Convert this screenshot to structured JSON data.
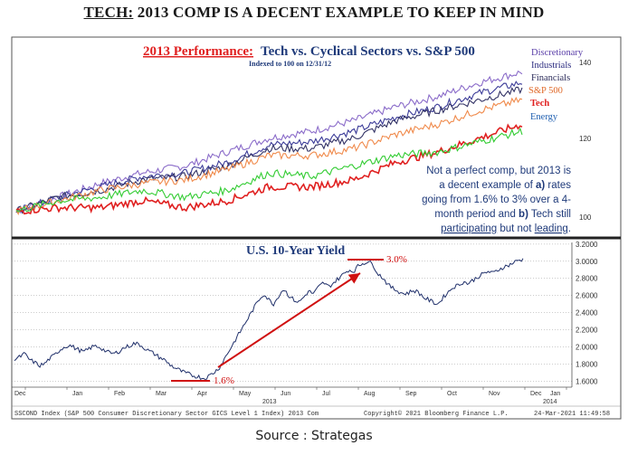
{
  "headline": {
    "prefix": "TECH:",
    "rest": " 2013 COMP IS A DECENT EXAMPLE TO KEEP IN MIND"
  },
  "source": "Source : Strategas",
  "chart_data": [
    {
      "type": "line",
      "title_prefix": "2013 Performance:",
      "title": "Tech vs. Cyclical Sectors vs. S&P 500",
      "subtitle": "Indexed to 100 on 12/31/12",
      "y_ticks": [
        "140",
        "120",
        "100"
      ],
      "ylim": [
        97,
        143
      ],
      "x": [
        0,
        1,
        2,
        3,
        4,
        5,
        6,
        7,
        8,
        9,
        10,
        11,
        12
      ],
      "series": [
        {
          "name": "Discretionary",
          "color": "#8a6bc9",
          "values": [
            100,
            104,
            108,
            111,
            113,
            117,
            121,
            123,
            126,
            130,
            133,
            137,
            140
          ]
        },
        {
          "name": "Industrials",
          "color": "#3b3b98",
          "values": [
            100,
            104,
            107,
            110,
            111,
            114,
            119,
            120,
            123,
            127,
            130,
            134,
            137
          ]
        },
        {
          "name": "Financials",
          "color": "#333366",
          "values": [
            100,
            104,
            106,
            109,
            110,
            113,
            118,
            118,
            121,
            126,
            129,
            132,
            135
          ]
        },
        {
          "name": "S&P 500",
          "color": "#f08a4b",
          "values": [
            100,
            103,
            106,
            108,
            109,
            112,
            116,
            116,
            118,
            122,
            125,
            129,
            132
          ]
        },
        {
          "name": "Tech",
          "color": "#e02020",
          "values": [
            100,
            101,
            101,
            103,
            101,
            103,
            107,
            107,
            109,
            114,
            117,
            121,
            125
          ]
        },
        {
          "name": "Energy",
          "color": "#33cc33",
          "values": [
            100,
            103,
            104,
            106,
            104,
            106,
            111,
            110,
            113,
            116,
            117,
            120,
            123
          ]
        }
      ],
      "annotation": {
        "line1": "Not a perfect comp, but 2013 is",
        "line2_pre": "a decent example of ",
        "line2_b": "a)",
        "line2_post": " rates",
        "line3": "going from 1.6% to 3% over a 4-",
        "line4_pre": "month period and ",
        "line4_b": "b)",
        "line4_post": " Tech still",
        "line5_u1": "participating",
        "line5_mid": " but not ",
        "line5_u2": "leading",
        "line5_end": "."
      }
    },
    {
      "type": "line",
      "title": "U.S. 10-Year Yield",
      "y_ticks": [
        "3.2000",
        "3.0000",
        "2.8000",
        "2.6000",
        "2.4000",
        "2.2000",
        "2.0000",
        "1.8000",
        "1.6000"
      ],
      "ylim": [
        1.55,
        3.22
      ],
      "yield_values": [
        1.85,
        1.88,
        1.92,
        1.85,
        1.82,
        1.78,
        1.8,
        1.86,
        1.9,
        1.96,
        2.0,
        2.02,
        1.99,
        1.96,
        1.94,
        1.98,
        2.01,
        2.0,
        1.96,
        1.93,
        1.92,
        1.95,
        1.99,
        2.01,
        2.04,
        2.03,
        1.99,
        1.95,
        1.92,
        1.88,
        1.85,
        1.8,
        1.76,
        1.73,
        1.7,
        1.68,
        1.66,
        1.65,
        1.63,
        1.66,
        1.7,
        1.75,
        1.85,
        1.95,
        2.05,
        2.15,
        2.25,
        2.35,
        2.45,
        2.55,
        2.62,
        2.55,
        2.5,
        2.6,
        2.68,
        2.6,
        2.55,
        2.52,
        2.58,
        2.65,
        2.62,
        2.7,
        2.75,
        2.7,
        2.75,
        2.8,
        2.85,
        2.9,
        2.88,
        2.95,
        2.98,
        3.0,
        2.95,
        2.85,
        2.8,
        2.72,
        2.68,
        2.65,
        2.62,
        2.63,
        2.66,
        2.64,
        2.58,
        2.55,
        2.52,
        2.5,
        2.58,
        2.64,
        2.7,
        2.72,
        2.76,
        2.74,
        2.78,
        2.82,
        2.85,
        2.88,
        2.86,
        2.9,
        2.93,
        2.95,
        2.98,
        3.01,
        3.02
      ],
      "low_label": "1.6%",
      "high_label": "3.0%",
      "x_months": [
        "Dec",
        "Jan",
        "Feb",
        "Mar",
        "Apr",
        "May",
        "Jun",
        "Jul",
        "Aug",
        "Sep",
        "Oct",
        "Nov",
        "Dec",
        "Jan"
      ],
      "x_years": [
        "2013",
        "2014"
      ],
      "footer_left": "SSCOND Index (S&P 500 Consumer Discretionary Sector GICS Level 1 Index) 2013 Com",
      "footer_mid": "Copyright© 2021 Bloomberg Finance L.P.",
      "footer_right": "24-Mar-2021 11:49:58"
    }
  ]
}
